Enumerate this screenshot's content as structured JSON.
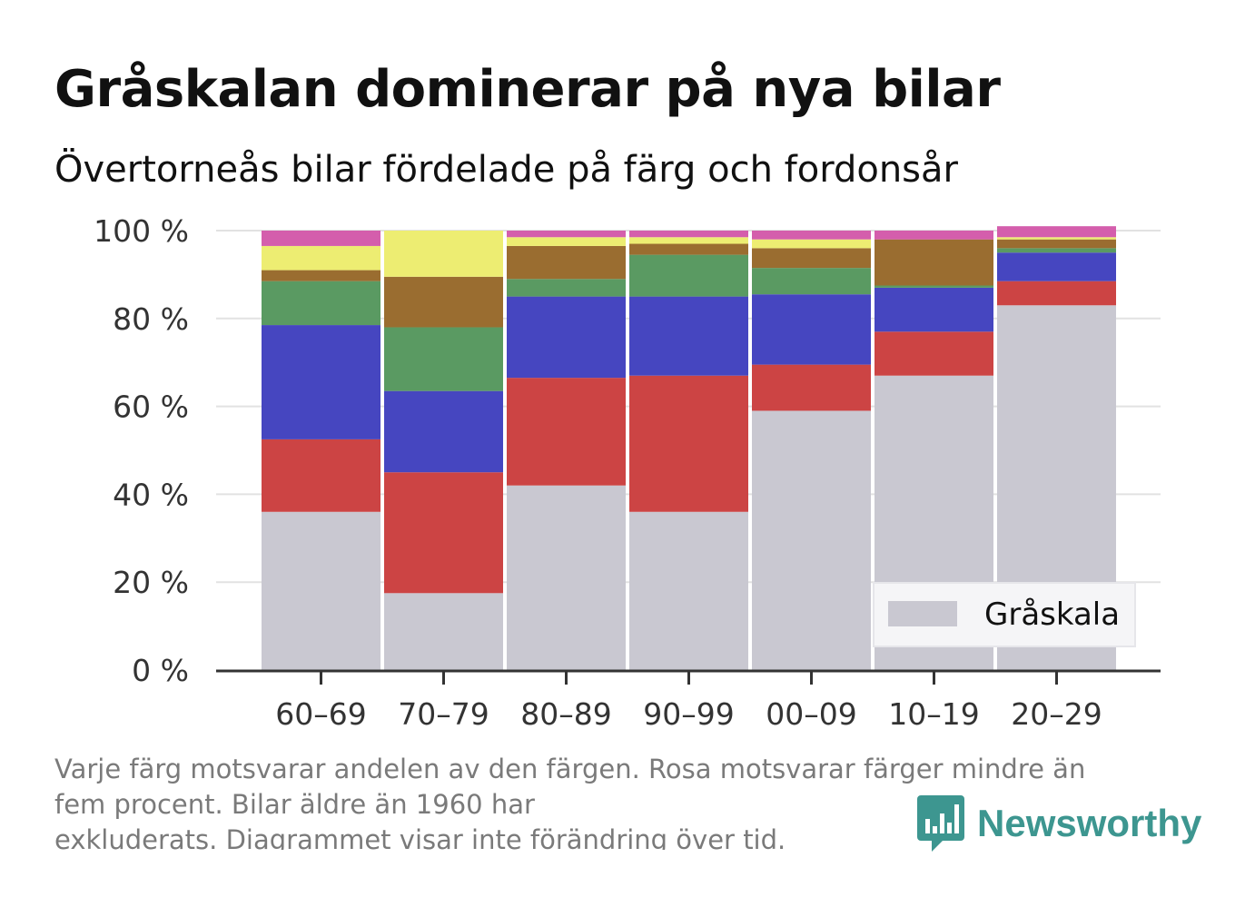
{
  "title": "Gråskalan dominerar på nya bilar",
  "subtitle": "Övertorneås bilar fördelade på färg och fordonsår",
  "footnote": {
    "line1": "Varje färg motsvarar andelen av den färgen. Rosa motsvarar färger mindre än",
    "line2": "fem procent. Bilar äldre än 1960 har",
    "line3": "exkluderats. Diagrammet visar inte förändring över tid."
  },
  "brand": {
    "name": "Newsworthy",
    "icon": "bar-chart-speech-bubble-icon",
    "color": "#3d9690"
  },
  "chart_data": {
    "type": "bar",
    "stacked": true,
    "categories": [
      "60–69",
      "70–79",
      "80–89",
      "90–99",
      "00–09",
      "10–19",
      "20–29"
    ],
    "y_ticks": [
      "0 %",
      "20 %",
      "40 %",
      "60 %",
      "80 %",
      "100 %"
    ],
    "ylim": [
      0,
      100
    ],
    "grid": true,
    "legend": {
      "position": "bottom-right",
      "entries": [
        "Gråskala"
      ]
    },
    "series": [
      {
        "name": "Gråskala",
        "color": "#c9c8d1",
        "values": [
          36,
          17.5,
          42,
          36,
          59,
          67,
          83
        ]
      },
      {
        "color": "#cc4444",
        "values": [
          16.5,
          27.5,
          24.5,
          31,
          10.5,
          10,
          5.5
        ]
      },
      {
        "color": "#4646c0",
        "values": [
          26,
          18.5,
          18.5,
          18,
          16,
          10,
          6.5
        ]
      },
      {
        "color": "#5a9a62",
        "values": [
          10,
          14.5,
          4,
          9.5,
          6,
          0.5,
          1
        ]
      },
      {
        "color": "#9a6d30",
        "values": [
          2.5,
          11.5,
          7.5,
          2.5,
          4.5,
          10.5,
          2
        ]
      },
      {
        "color": "#eded72",
        "values": [
          5.5,
          10.5,
          2,
          1.5,
          2,
          0,
          0.5
        ]
      },
      {
        "color": "#d45eac",
        "values": [
          3.5,
          0,
          1.5,
          1.5,
          2,
          2,
          2.5
        ]
      }
    ]
  }
}
